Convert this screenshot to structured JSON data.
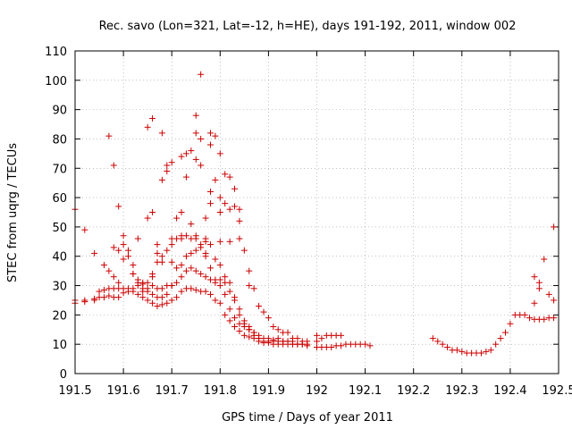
{
  "chart_data": {
    "type": "scatter",
    "title": "Rec. savo (Lon=321, Lat=-12, h=HE), days 191-192, 2011, window 002",
    "xlabel": "GPS time / Days of year 2011",
    "ylabel": "STEC from uqrg / TECUs",
    "xlim": [
      191.5,
      192.5
    ],
    "ylim": [
      0,
      110
    ],
    "x_ticks": [
      "191.5",
      "191.6",
      "191.7",
      "191.8",
      "191.9",
      "192",
      "192.1",
      "192.2",
      "192.3",
      "192.4",
      "192.5"
    ],
    "y_ticks": [
      "0",
      "10",
      "20",
      "30",
      "40",
      "50",
      "60",
      "70",
      "80",
      "90",
      "100",
      "110"
    ],
    "grid": true,
    "marker": "plus",
    "colors": {
      "series": "#cc0000",
      "grid": "#9a9a9a"
    },
    "points": [
      [
        191.5,
        56
      ],
      [
        191.5,
        25
      ],
      [
        191.5,
        24
      ],
      [
        191.52,
        49
      ],
      [
        191.52,
        24.5
      ],
      [
        191.54,
        41
      ],
      [
        191.54,
        25
      ],
      [
        191.56,
        37
      ],
      [
        191.57,
        81
      ],
      [
        191.57,
        35
      ],
      [
        191.58,
        71
      ],
      [
        191.58,
        43
      ],
      [
        191.58,
        33
      ],
      [
        191.59,
        57
      ],
      [
        191.59,
        42
      ],
      [
        191.59,
        31
      ],
      [
        191.6,
        47
      ],
      [
        191.6,
        44
      ],
      [
        191.6,
        39
      ],
      [
        191.61,
        42
      ],
      [
        191.61,
        40
      ],
      [
        191.62,
        37
      ],
      [
        191.62,
        34
      ],
      [
        191.63,
        46
      ],
      [
        191.63,
        31
      ],
      [
        191.64,
        29
      ],
      [
        191.65,
        53
      ],
      [
        191.65,
        84
      ],
      [
        191.66,
        87
      ],
      [
        191.66,
        55
      ],
      [
        191.66,
        34
      ],
      [
        191.67,
        44
      ],
      [
        191.67,
        41
      ],
      [
        191.68,
        82
      ],
      [
        191.68,
        66
      ],
      [
        191.68,
        38
      ],
      [
        191.69,
        69
      ],
      [
        191.69,
        71
      ],
      [
        191.7,
        72
      ],
      [
        191.7,
        44
      ],
      [
        191.7,
        38
      ],
      [
        191.71,
        53
      ],
      [
        191.72,
        74
      ],
      [
        191.72,
        55
      ],
      [
        191.72,
        46
      ],
      [
        191.73,
        67
      ],
      [
        191.73,
        75
      ],
      [
        191.74,
        76
      ],
      [
        191.74,
        51
      ],
      [
        191.75,
        88
      ],
      [
        191.75,
        82
      ],
      [
        191.75,
        73
      ],
      [
        191.75,
        46
      ],
      [
        191.76,
        102
      ],
      [
        191.76,
        80
      ],
      [
        191.76,
        71
      ],
      [
        191.77,
        53
      ],
      [
        191.77,
        46
      ],
      [
        191.77,
        40
      ],
      [
        191.78,
        82
      ],
      [
        191.78,
        78
      ],
      [
        191.78,
        62
      ],
      [
        191.78,
        58
      ],
      [
        191.79,
        81
      ],
      [
        191.79,
        66
      ],
      [
        191.8,
        75
      ],
      [
        191.8,
        60
      ],
      [
        191.8,
        55
      ],
      [
        191.8,
        45
      ],
      [
        191.81,
        68
      ],
      [
        191.81,
        58
      ],
      [
        191.82,
        67
      ],
      [
        191.82,
        56
      ],
      [
        191.82,
        45
      ],
      [
        191.83,
        63
      ],
      [
        191.83,
        57
      ],
      [
        191.84,
        56
      ],
      [
        191.84,
        52
      ],
      [
        191.84,
        46
      ],
      [
        191.85,
        42
      ],
      [
        191.86,
        30
      ],
      [
        191.86,
        35
      ],
      [
        191.87,
        29
      ],
      [
        191.88,
        23
      ],
      [
        191.89,
        21
      ],
      [
        191.9,
        19
      ],
      [
        191.91,
        16
      ],
      [
        191.92,
        15
      ],
      [
        191.93,
        14
      ],
      [
        191.94,
        14
      ],
      [
        191.95,
        12
      ],
      [
        191.96,
        12
      ],
      [
        191.97,
        11
      ],
      [
        191.98,
        11
      ],
      [
        192.0,
        13
      ],
      [
        192.0,
        11
      ],
      [
        192.01,
        12
      ],
      [
        192.02,
        13
      ],
      [
        192.03,
        13
      ],
      [
        192.04,
        13
      ],
      [
        192.05,
        13
      ],
      [
        192.06,
        10
      ],
      [
        192.07,
        10
      ],
      [
        192.08,
        10
      ],
      [
        192.09,
        10
      ],
      [
        192.1,
        10
      ],
      [
        192.11,
        9.5
      ],
      [
        192.24,
        12
      ],
      [
        192.25,
        11
      ],
      [
        192.26,
        10
      ],
      [
        192.27,
        9
      ],
      [
        192.28,
        8
      ],
      [
        192.29,
        8
      ],
      [
        192.3,
        7.5
      ],
      [
        192.31,
        7
      ],
      [
        192.32,
        7
      ],
      [
        192.33,
        7
      ],
      [
        192.34,
        7
      ],
      [
        192.35,
        7.5
      ],
      [
        192.36,
        8
      ],
      [
        192.37,
        10
      ],
      [
        192.38,
        12
      ],
      [
        192.39,
        14
      ],
      [
        192.4,
        17
      ],
      [
        192.41,
        20
      ],
      [
        192.42,
        20
      ],
      [
        192.43,
        20
      ],
      [
        192.44,
        19
      ],
      [
        192.45,
        18.5
      ],
      [
        192.46,
        18.5
      ],
      [
        192.47,
        18.5
      ],
      [
        192.48,
        19
      ],
      [
        192.49,
        19
      ],
      [
        192.45,
        24
      ],
      [
        192.45,
        33
      ],
      [
        192.46,
        31
      ],
      [
        192.46,
        29
      ],
      [
        192.47,
        39
      ],
      [
        192.48,
        27
      ],
      [
        192.49,
        50
      ],
      [
        192.49,
        25
      ],
      [
        191.52,
        25
      ],
      [
        191.54,
        25.5
      ],
      [
        191.55,
        26
      ],
      [
        191.56,
        26
      ],
      [
        191.57,
        26.5
      ],
      [
        191.58,
        26
      ],
      [
        191.59,
        26
      ],
      [
        191.6,
        27.5
      ],
      [
        191.61,
        28
      ],
      [
        191.62,
        28
      ],
      [
        191.63,
        27
      ],
      [
        191.64,
        26
      ],
      [
        191.65,
        25
      ],
      [
        191.66,
        24
      ],
      [
        191.67,
        23
      ],
      [
        191.68,
        23.5
      ],
      [
        191.69,
        24
      ],
      [
        191.7,
        25
      ],
      [
        191.71,
        26
      ],
      [
        191.72,
        28
      ],
      [
        191.73,
        29
      ],
      [
        191.74,
        29
      ],
      [
        191.75,
        28.5
      ],
      [
        191.76,
        28
      ],
      [
        191.77,
        28
      ],
      [
        191.78,
        27
      ],
      [
        191.79,
        25
      ],
      [
        191.8,
        24
      ],
      [
        191.81,
        20
      ],
      [
        191.82,
        18
      ],
      [
        191.83,
        16
      ],
      [
        191.84,
        14.5
      ],
      [
        191.85,
        13
      ],
      [
        191.86,
        12.5
      ],
      [
        191.87,
        12
      ],
      [
        191.88,
        11
      ],
      [
        191.89,
        10.5
      ],
      [
        191.9,
        10.5
      ],
      [
        191.91,
        10
      ],
      [
        191.92,
        10
      ],
      [
        191.93,
        10
      ],
      [
        191.94,
        10
      ],
      [
        191.95,
        10
      ],
      [
        191.96,
        10
      ],
      [
        191.97,
        10
      ],
      [
        191.98,
        10
      ],
      [
        192.0,
        9
      ],
      [
        192.01,
        9
      ],
      [
        192.02,
        9
      ],
      [
        192.03,
        9
      ],
      [
        192.04,
        9.5
      ],
      [
        192.05,
        9.5
      ],
      [
        191.55,
        28
      ],
      [
        191.56,
        28.5
      ],
      [
        191.57,
        29
      ],
      [
        191.58,
        29
      ],
      [
        191.59,
        29
      ],
      [
        191.6,
        29
      ],
      [
        191.61,
        29
      ],
      [
        191.62,
        29
      ],
      [
        191.63,
        30
      ],
      [
        191.64,
        30.5
      ],
      [
        191.65,
        31
      ],
      [
        191.66,
        30
      ],
      [
        191.67,
        29
      ],
      [
        191.68,
        29
      ],
      [
        191.69,
        30
      ],
      [
        191.7,
        30
      ],
      [
        191.71,
        31
      ],
      [
        191.72,
        33
      ],
      [
        191.73,
        35
      ],
      [
        191.74,
        36
      ],
      [
        191.75,
        35
      ],
      [
        191.76,
        34
      ],
      [
        191.77,
        33
      ],
      [
        191.78,
        32
      ],
      [
        191.79,
        31
      ],
      [
        191.8,
        30
      ],
      [
        191.81,
        27
      ],
      [
        191.82,
        22
      ],
      [
        191.83,
        19
      ],
      [
        191.84,
        17
      ],
      [
        191.85,
        16
      ],
      [
        191.86,
        15
      ],
      [
        191.87,
        14
      ],
      [
        191.88,
        13
      ],
      [
        191.89,
        12
      ],
      [
        191.9,
        12
      ],
      [
        191.91,
        11.5
      ],
      [
        191.92,
        11
      ],
      [
        191.93,
        11
      ],
      [
        191.94,
        11
      ],
      [
        191.95,
        11
      ],
      [
        191.62,
        34
      ],
      [
        191.63,
        32
      ],
      [
        191.64,
        31
      ],
      [
        191.65,
        28
      ],
      [
        191.66,
        27
      ],
      [
        191.67,
        26
      ],
      [
        191.68,
        26
      ],
      [
        191.69,
        27
      ],
      [
        191.7,
        30
      ],
      [
        191.71,
        36
      ],
      [
        191.72,
        37
      ],
      [
        191.73,
        40
      ],
      [
        191.74,
        41
      ],
      [
        191.75,
        42
      ],
      [
        191.76,
        43
      ],
      [
        191.77,
        45
      ],
      [
        191.78,
        44
      ],
      [
        191.79,
        39
      ],
      [
        191.8,
        37
      ],
      [
        191.81,
        33
      ],
      [
        191.82,
        31
      ],
      [
        191.83,
        26
      ],
      [
        191.84,
        22
      ],
      [
        191.85,
        18
      ],
      [
        191.86,
        16
      ],
      [
        191.87,
        14
      ],
      [
        191.88,
        12
      ],
      [
        191.89,
        11
      ],
      [
        191.9,
        11
      ],
      [
        191.91,
        11
      ],
      [
        191.92,
        12
      ],
      [
        191.93,
        11
      ],
      [
        191.94,
        11
      ],
      [
        191.95,
        10
      ],
      [
        191.96,
        10
      ],
      [
        191.97,
        10
      ],
      [
        191.98,
        9.5
      ],
      [
        191.64,
        28
      ],
      [
        191.65,
        29
      ],
      [
        191.66,
        33
      ],
      [
        191.67,
        38
      ],
      [
        191.68,
        40
      ],
      [
        191.69,
        42
      ],
      [
        191.7,
        46
      ],
      [
        191.71,
        46
      ],
      [
        191.72,
        47
      ],
      [
        191.73,
        47
      ],
      [
        191.74,
        46
      ],
      [
        191.75,
        47
      ],
      [
        191.76,
        44
      ],
      [
        191.77,
        41
      ],
      [
        191.78,
        36
      ],
      [
        191.79,
        32
      ],
      [
        191.8,
        32
      ],
      [
        191.81,
        31
      ],
      [
        191.82,
        28
      ],
      [
        191.83,
        25
      ],
      [
        191.84,
        20
      ],
      [
        191.85,
        17
      ],
      [
        191.86,
        15
      ],
      [
        191.87,
        13
      ],
      [
        191.88,
        12
      ],
      [
        191.89,
        11
      ]
    ]
  }
}
